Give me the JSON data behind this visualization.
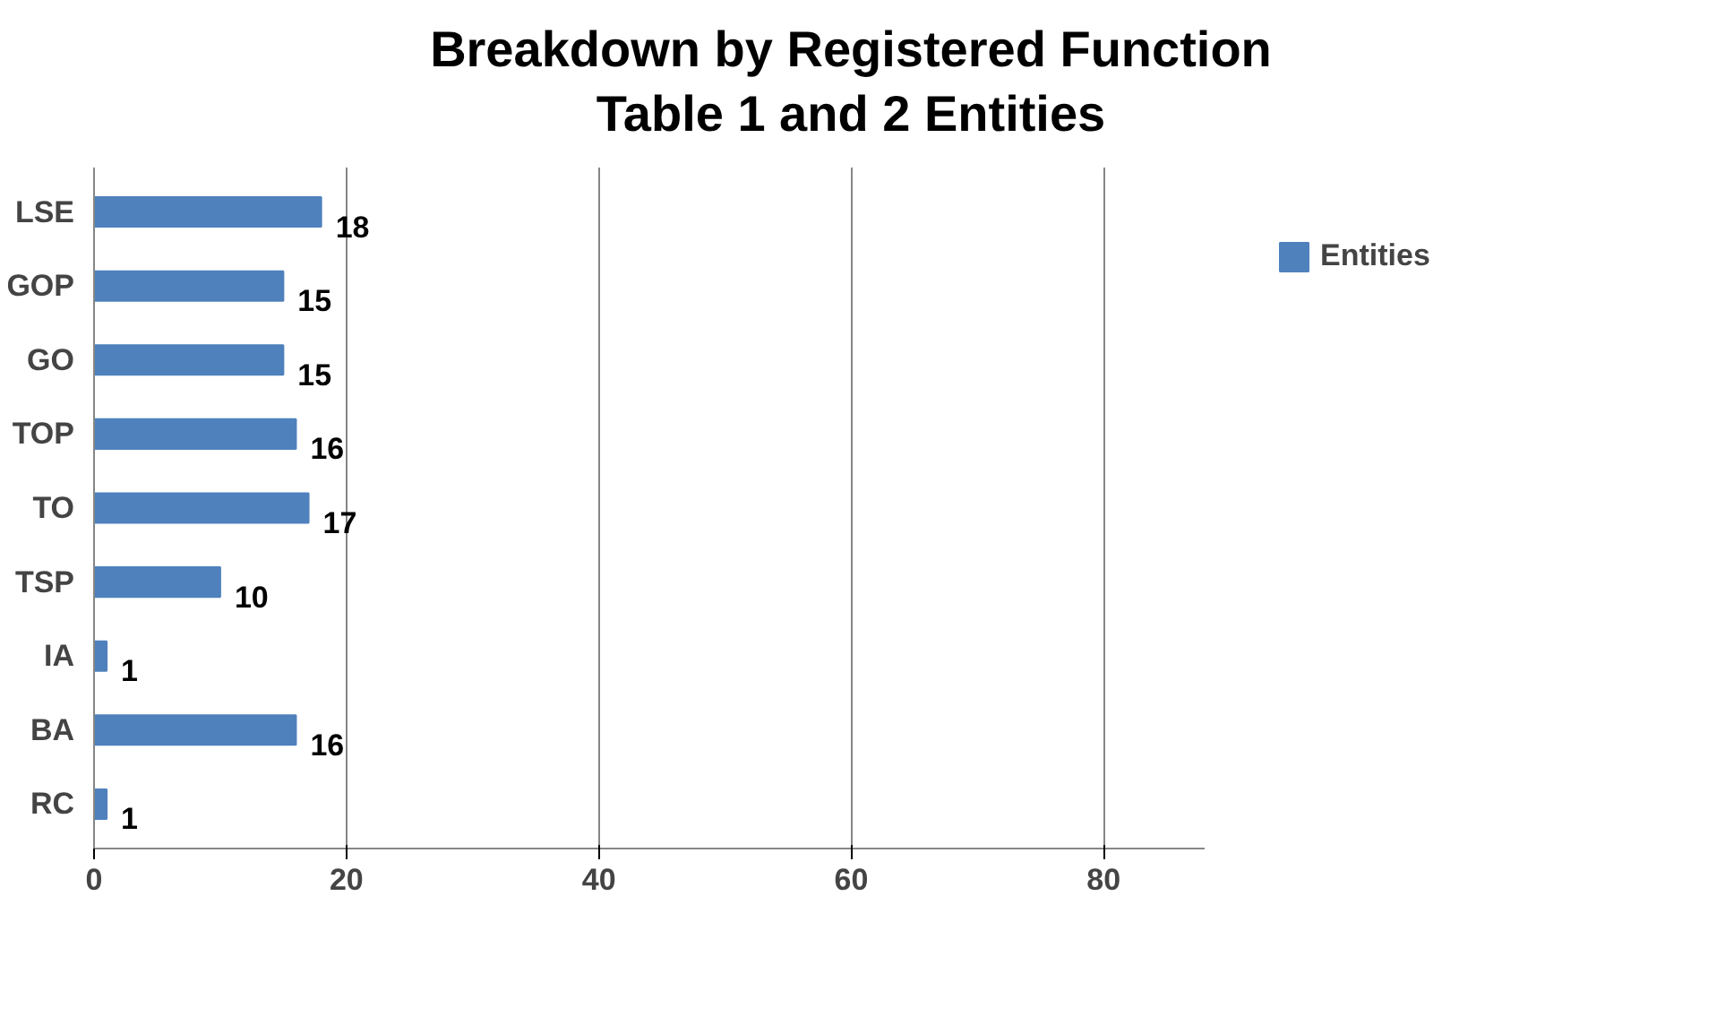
{
  "chart_data": {
    "type": "bar",
    "orientation": "horizontal",
    "title": "Breakdown by Registered Function\nTable 1 and 2 Entities",
    "categories": [
      "LSE",
      "GOP",
      "GO",
      "TOP",
      "TO",
      "TSP",
      "IA",
      "BA",
      "RC"
    ],
    "series": [
      {
        "name": "Entities",
        "color": "#4f81bd",
        "values": [
          18,
          15,
          15,
          16,
          17,
          10,
          1,
          16,
          1
        ]
      }
    ],
    "xlim": [
      0,
      88
    ],
    "xticks": [
      0,
      20,
      40,
      60,
      80
    ],
    "grid": "x",
    "legend": "right",
    "data_labels": true
  }
}
